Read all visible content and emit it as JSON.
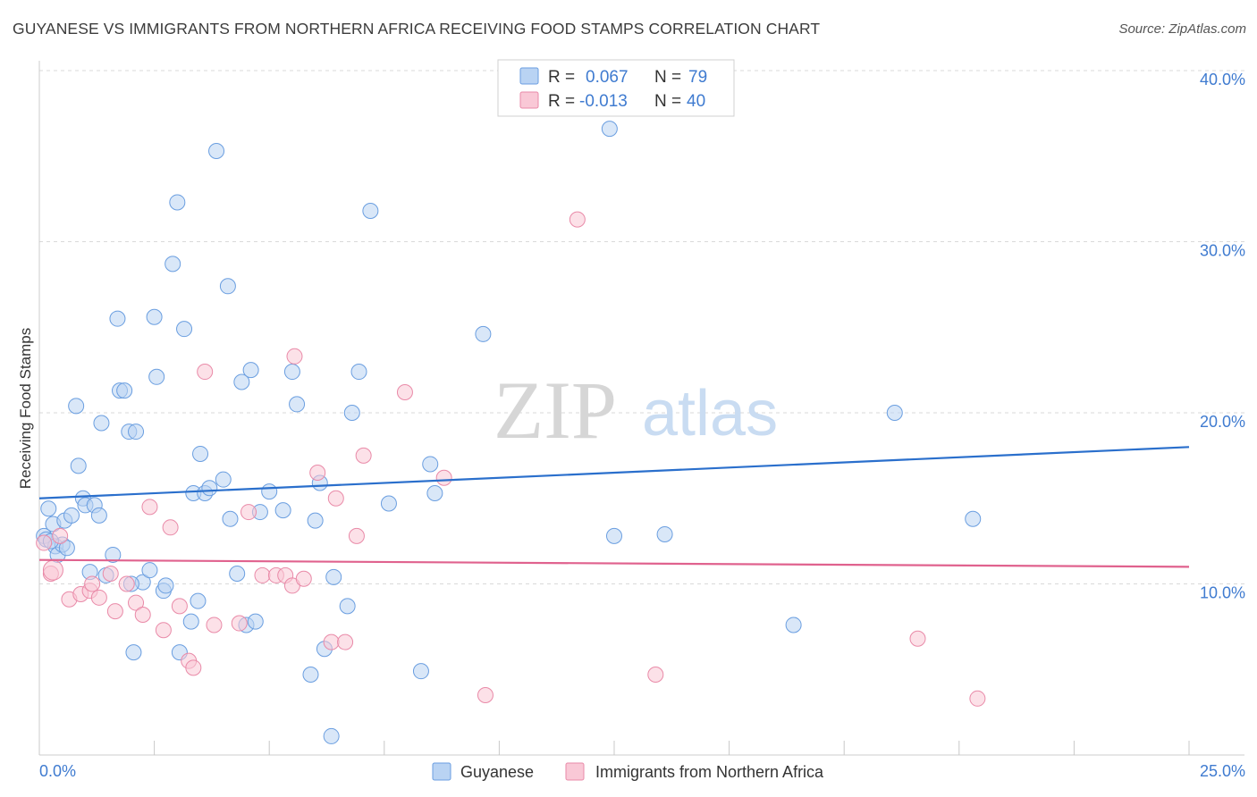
{
  "header": {
    "title": "GUYANESE VS IMMIGRANTS FROM NORTHERN AFRICA RECEIVING FOOD STAMPS CORRELATION CHART",
    "source": "Source: ZipAtlas.com"
  },
  "watermark": {
    "zip": "ZIP",
    "atlas": "atlas"
  },
  "colors": {
    "guyanese_fill": "#b9d3f3",
    "guyanese_stroke": "#6a9ee0",
    "guyanese_line": "#2a6fcc",
    "africa_fill": "#f9c8d6",
    "africa_stroke": "#e98aa8",
    "africa_line": "#e0628e",
    "tick_text": "#3f7bd0",
    "grid": "#d9d9d9"
  },
  "legend": {
    "rows": [
      {
        "r_label": "R =",
        "r_value": "0.067",
        "n_label": "N =",
        "n_value": "79"
      },
      {
        "r_label": "R =",
        "r_value": "-0.013",
        "n_label": "N =",
        "n_value": "40"
      }
    ]
  },
  "chart_data": {
    "type": "scatter",
    "ylabel": "Receiving Food Stamps",
    "xlim": [
      0,
      25
    ],
    "ylim": [
      0,
      42
    ],
    "x_tick_labels": [
      "0.0%",
      "25.0%"
    ],
    "y_ticks": [
      10,
      20,
      30,
      40
    ],
    "y_tick_labels": [
      "10.0%",
      "20.0%",
      "30.0%",
      "40.0%"
    ],
    "grid": true,
    "legend_position": "top-center",
    "series": [
      {
        "name": "Guyanese",
        "color": "#6a9ee0",
        "trend": {
          "x": [
            0,
            25
          ],
          "y": [
            15.0,
            18.0
          ]
        },
        "points": [
          [
            0.1,
            12.8
          ],
          [
            0.15,
            12.6
          ],
          [
            0.2,
            14.4
          ],
          [
            0.3,
            13.5
          ],
          [
            0.35,
            12.2
          ],
          [
            0.4,
            11.7
          ],
          [
            0.5,
            12.3
          ],
          [
            0.55,
            13.7
          ],
          [
            0.7,
            14.0
          ],
          [
            0.8,
            20.4
          ],
          [
            0.85,
            16.9
          ],
          [
            0.95,
            15.0
          ],
          [
            1.0,
            14.6
          ],
          [
            1.1,
            10.7
          ],
          [
            1.2,
            14.6
          ],
          [
            1.3,
            14.0
          ],
          [
            1.35,
            19.4
          ],
          [
            1.45,
            10.5
          ],
          [
            1.6,
            11.7
          ],
          [
            1.7,
            25.5
          ],
          [
            1.75,
            21.3
          ],
          [
            1.85,
            21.3
          ],
          [
            1.95,
            18.9
          ],
          [
            2.05,
            6.0
          ],
          [
            2.1,
            18.9
          ],
          [
            2.25,
            10.1
          ],
          [
            2.4,
            10.8
          ],
          [
            2.5,
            25.6
          ],
          [
            2.55,
            22.1
          ],
          [
            2.7,
            9.6
          ],
          [
            2.75,
            9.9
          ],
          [
            2.9,
            28.7
          ],
          [
            3.0,
            32.3
          ],
          [
            3.05,
            6.0
          ],
          [
            3.15,
            24.9
          ],
          [
            3.3,
            7.8
          ],
          [
            3.35,
            15.3
          ],
          [
            3.45,
            9.0
          ],
          [
            3.5,
            17.6
          ],
          [
            3.6,
            15.3
          ],
          [
            3.7,
            15.6
          ],
          [
            3.85,
            35.3
          ],
          [
            4.0,
            16.1
          ],
          [
            4.1,
            27.4
          ],
          [
            4.15,
            13.8
          ],
          [
            4.3,
            10.6
          ],
          [
            4.4,
            21.8
          ],
          [
            4.5,
            7.6
          ],
          [
            4.6,
            22.5
          ],
          [
            4.7,
            7.8
          ],
          [
            4.8,
            14.2
          ],
          [
            5.0,
            15.4
          ],
          [
            5.3,
            14.3
          ],
          [
            5.5,
            22.4
          ],
          [
            5.6,
            20.5
          ],
          [
            5.9,
            4.7
          ],
          [
            6.0,
            13.7
          ],
          [
            6.1,
            15.9
          ],
          [
            6.2,
            6.2
          ],
          [
            6.35,
            1.1
          ],
          [
            6.4,
            10.4
          ],
          [
            6.7,
            8.7
          ],
          [
            6.8,
            20.0
          ],
          [
            6.95,
            22.4
          ],
          [
            7.2,
            31.8
          ],
          [
            7.6,
            14.7
          ],
          [
            8.3,
            4.9
          ],
          [
            8.5,
            17.0
          ],
          [
            8.6,
            15.3
          ],
          [
            9.65,
            24.6
          ],
          [
            12.4,
            36.6
          ],
          [
            12.5,
            12.8
          ],
          [
            13.6,
            12.9
          ],
          [
            16.4,
            7.6
          ],
          [
            18.6,
            20.0
          ],
          [
            20.3,
            13.8
          ],
          [
            0.25,
            12.5
          ],
          [
            0.6,
            12.1
          ],
          [
            2.0,
            10.0
          ]
        ]
      },
      {
        "name": "Immigrants from Northern Africa",
        "color": "#e98aa8",
        "trend": {
          "x": [
            0,
            25
          ],
          "y": [
            11.4,
            11.0
          ]
        },
        "points": [
          [
            0.1,
            12.4
          ],
          [
            0.25,
            10.6
          ],
          [
            0.45,
            12.8
          ],
          [
            0.65,
            9.1
          ],
          [
            0.9,
            9.4
          ],
          [
            1.1,
            9.6
          ],
          [
            1.15,
            10.0
          ],
          [
            1.3,
            9.2
          ],
          [
            1.55,
            10.6
          ],
          [
            1.65,
            8.4
          ],
          [
            1.9,
            10.0
          ],
          [
            2.1,
            8.9
          ],
          [
            2.25,
            8.2
          ],
          [
            2.4,
            14.5
          ],
          [
            2.7,
            7.3
          ],
          [
            2.85,
            13.3
          ],
          [
            3.05,
            8.7
          ],
          [
            3.25,
            5.5
          ],
          [
            3.35,
            5.1
          ],
          [
            3.6,
            22.4
          ],
          [
            3.8,
            7.6
          ],
          [
            4.35,
            7.7
          ],
          [
            4.55,
            14.2
          ],
          [
            4.85,
            10.5
          ],
          [
            5.15,
            10.5
          ],
          [
            5.35,
            10.5
          ],
          [
            5.5,
            9.9
          ],
          [
            5.55,
            23.3
          ],
          [
            5.75,
            10.3
          ],
          [
            6.05,
            16.5
          ],
          [
            6.35,
            6.6
          ],
          [
            6.45,
            15.0
          ],
          [
            6.65,
            6.6
          ],
          [
            6.9,
            12.8
          ],
          [
            7.05,
            17.5
          ],
          [
            7.95,
            21.2
          ],
          [
            8.8,
            16.2
          ],
          [
            9.7,
            3.5
          ],
          [
            11.7,
            31.3
          ],
          [
            13.4,
            4.7
          ]
        ]
      }
    ],
    "extra_africa_points": [
      [
        19.1,
        6.8
      ],
      [
        20.4,
        3.3
      ]
    ]
  },
  "bottom_legend": [
    {
      "label": "Guyanese"
    },
    {
      "label": "Immigrants from Northern Africa"
    }
  ]
}
